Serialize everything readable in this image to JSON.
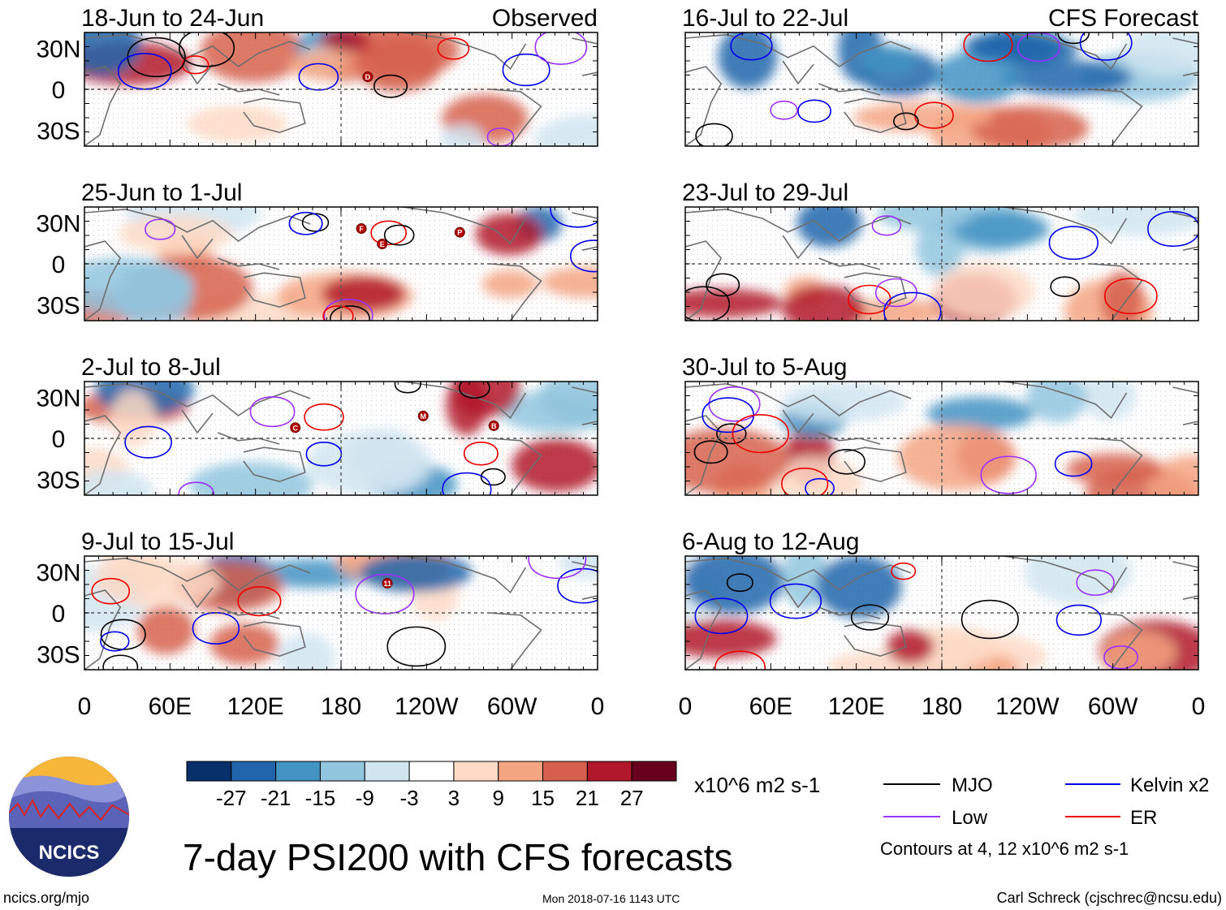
{
  "figure": {
    "title": "7-day PSI200 with CFS forecasts",
    "website": "ncics.org/mjo",
    "timestamp": "Mon 2018-07-16 1143 UTC",
    "author": "Carl Schreck (cjschrec@ncsu.edu)",
    "logo_text": "NCICS"
  },
  "labels": {
    "observed": "Observed",
    "forecast": "CFS Forecast"
  },
  "axes": {
    "lat_ticks": [
      "30N",
      "0",
      "30S"
    ],
    "lon_ticks": [
      "0",
      "60E",
      "120E",
      "180",
      "120W",
      "60W",
      "0"
    ]
  },
  "panels": {
    "observed": [
      {
        "period": "18-Jun to 24-Jun",
        "storms": [
          "D"
        ]
      },
      {
        "period": "25-Jun to 1-Jul",
        "storms": [
          "P",
          "E",
          "F"
        ]
      },
      {
        "period": "2-Jul to 8-Jul",
        "storms": [
          "C",
          "M",
          "B"
        ]
      },
      {
        "period": "9-Jul to 15-Jul",
        "storms": [
          "11"
        ]
      }
    ],
    "forecast": [
      {
        "period": "16-Jul to 22-Jul"
      },
      {
        "period": "23-Jul to 29-Jul"
      },
      {
        "period": "30-Jul to 5-Aug"
      },
      {
        "period": "6-Aug to 12-Aug"
      }
    ]
  },
  "colorbar": {
    "levels": [
      "-27",
      "-21",
      "-15",
      "-9",
      "-3",
      "3",
      "9",
      "15",
      "21",
      "27"
    ],
    "colors": [
      "#08306b",
      "#2166ac",
      "#4393c3",
      "#92c5de",
      "#d1e5f0",
      "#ffffff",
      "#fddbc7",
      "#f4a582",
      "#d6604d",
      "#b2182b",
      "#67001f"
    ],
    "units": "x10^6 m2 s-1"
  },
  "legend": {
    "items": [
      {
        "label": "MJO",
        "color": "#000000"
      },
      {
        "label": "Kelvin x2",
        "color": "#0000ee"
      },
      {
        "label": "Low",
        "color": "#9b30ff"
      },
      {
        "label": "ER",
        "color": "#ee0000"
      }
    ],
    "contours_note": "Contours at 4, 12 x10^6 m2 s-1"
  }
}
